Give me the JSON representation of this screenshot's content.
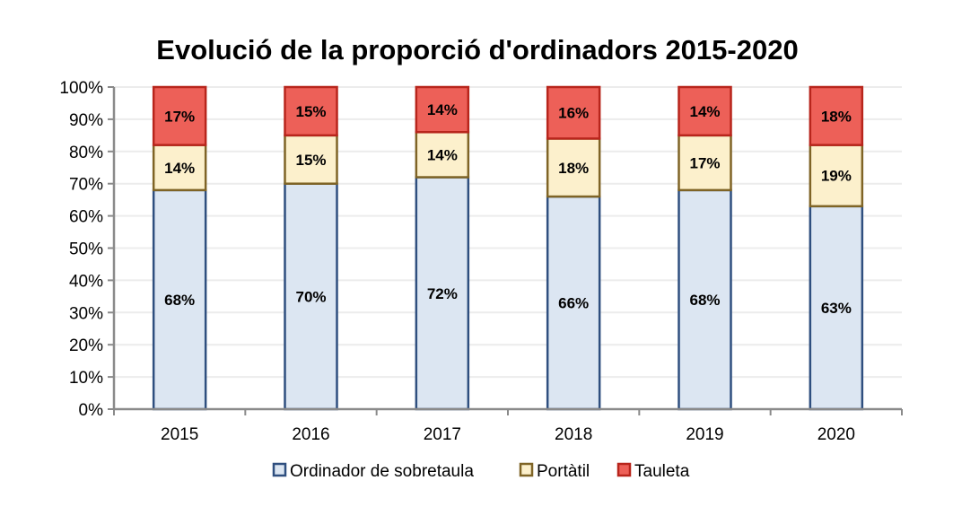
{
  "chart_data": {
    "type": "bar",
    "stacked": true,
    "title": "Evolució de la proporció d'ordinadors 2015-2020",
    "xlabel": "",
    "ylabel": "",
    "categories": [
      "2015",
      "2016",
      "2017",
      "2018",
      "2019",
      "2020"
    ],
    "series": [
      {
        "name": "Ordinador de sobretaula",
        "values": [
          68,
          70,
          72,
          66,
          68,
          63
        ],
        "labels": [
          "68%",
          "70%",
          "72%",
          "66%",
          "68%",
          "63%"
        ],
        "fill": "#dce6f2",
        "stroke": "#2f4f7f"
      },
      {
        "name": "Portàtil",
        "values": [
          14,
          15,
          14,
          18,
          17,
          19
        ],
        "labels": [
          "14%",
          "15%",
          "14%",
          "18%",
          "17%",
          "19%"
        ],
        "fill": "#fcf0cc",
        "stroke": "#7f6426"
      },
      {
        "name": "Tauleta",
        "values": [
          17,
          15,
          14,
          16,
          14,
          18
        ],
        "labels": [
          "17%",
          "15%",
          "14%",
          "16%",
          "14%",
          "18%"
        ],
        "fill": "#ed6058",
        "stroke": "#b8251c"
      }
    ],
    "ylim": [
      0,
      100
    ],
    "yticks": [
      "0%",
      "10%",
      "20%",
      "30%",
      "40%",
      "50%",
      "60%",
      "70%",
      "80%",
      "90%",
      "100%"
    ],
    "grid": true,
    "legend_position": "bottom"
  }
}
